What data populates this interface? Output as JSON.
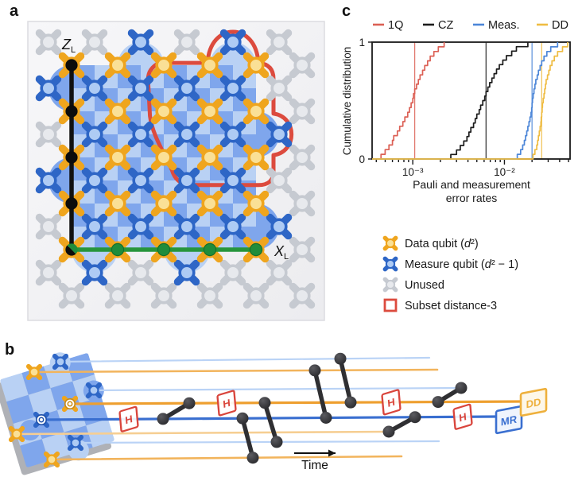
{
  "figure": {
    "panel_a_label": "a",
    "panel_b_label": "b",
    "panel_c_label": "c"
  },
  "colors": {
    "data_arm": "#EFA51E",
    "data_core": "#FAE096",
    "measure_arm": "#2E66C6",
    "measure_core": "#AECBF4",
    "unused_arm": "#C6CAD1",
    "unused_core": "#E7E9ED",
    "checker_light": "#B9D1F4",
    "checker_medium": "#7FA6EC",
    "subset_red": "#DC4B3E",
    "z_line_black": "#111111",
    "x_line_green": "#27953C",
    "x_dot_green": "#1F8C3B",
    "panel_bg": "#F4F4F6",
    "panel_border": "#DCDCE0",
    "wire_lightblue": "#BAD3F6",
    "wire_orange": "#F2B45C",
    "wire_orange_bold": "#EE9F2F",
    "wire_blue_bold": "#3A6FD0",
    "wire_orange_pale": "#F6CE92",
    "dumbbell": "#2F2F32",
    "h_gate_red": "#D9453C",
    "mr_blue": "#3A6FD0",
    "dd_yellow": "#EEB03C"
  },
  "panel_a": {
    "z_logical": {
      "symbol": "Z",
      "subscript": "L"
    },
    "x_logical": {
      "symbol": "X",
      "subscript": "L"
    },
    "code_distance": 5,
    "data_qubit_count": 25,
    "measure_qubit_count": 24,
    "boundary_measure_sites": [
      [
        1.5,
        -0.5
      ],
      [
        3.5,
        -0.5
      ],
      [
        -0.5,
        0.5
      ],
      [
        -0.5,
        2.5
      ],
      [
        4.5,
        1.5
      ],
      [
        4.5,
        3.5
      ],
      [
        0.5,
        4.5
      ],
      [
        2.5,
        4.5
      ]
    ],
    "unused_sites": [
      [
        -0.5,
        -0.5
      ],
      [
        0.5,
        -0.5
      ],
      [
        2.5,
        -0.5
      ],
      [
        4.5,
        -0.5
      ],
      [
        -0.5,
        1.5
      ],
      [
        -0.5,
        3.5
      ],
      [
        4.5,
        0.5
      ],
      [
        4.5,
        2.5
      ],
      [
        -0.5,
        4.5
      ],
      [
        1.5,
        4.5
      ],
      [
        3.5,
        4.5
      ],
      [
        4.5,
        4.5
      ],
      [
        5,
        0
      ],
      [
        5,
        1
      ],
      [
        5,
        2
      ],
      [
        5,
        3
      ],
      [
        5,
        4
      ],
      [
        5,
        5
      ],
      [
        0,
        5
      ],
      [
        1,
        5
      ],
      [
        2,
        5
      ],
      [
        3,
        5
      ],
      [
        4,
        5
      ]
    ]
  },
  "chart_data": {
    "type": "line",
    "subtype": "empirical_cdf_steps",
    "title": "",
    "xlabel_lines": [
      "Pauli and measurement",
      "error rates"
    ],
    "ylabel": "Cumulative distribution",
    "x_scale": "log",
    "xlim": [
      0.00036,
      0.052
    ],
    "ylim": [
      0,
      1
    ],
    "x_ticks": [
      {
        "value": 0.001,
        "label": "10⁻³"
      },
      {
        "value": 0.01,
        "label": "10⁻²"
      }
    ],
    "y_ticks": [
      {
        "value": 0,
        "label": "0"
      },
      {
        "value": 1,
        "label": "1"
      }
    ],
    "legend_position": "top",
    "grid": false,
    "series": [
      {
        "name": "1Q",
        "color": "#DC6055",
        "median": 0.00105,
        "samples": [
          0.00045,
          0.0005,
          0.00055,
          0.0006,
          0.00062,
          0.00068,
          0.00072,
          0.00078,
          0.00082,
          0.00088,
          0.00092,
          0.00096,
          0.001,
          0.00102,
          0.00105,
          0.0011,
          0.00115,
          0.0012,
          0.00128,
          0.00135,
          0.00145,
          0.00155,
          0.0017,
          0.0019,
          0.0022
        ]
      },
      {
        "name": "CZ",
        "color": "#1B1B1B",
        "median": 0.0063,
        "samples": [
          0.0026,
          0.003,
          0.0033,
          0.0036,
          0.0039,
          0.0041,
          0.0043,
          0.0046,
          0.0048,
          0.005,
          0.0053,
          0.0055,
          0.0058,
          0.0061,
          0.0063,
          0.0066,
          0.0069,
          0.0073,
          0.0077,
          0.0082,
          0.0088,
          0.0096,
          0.0105,
          0.012,
          0.0135,
          0.018
        ]
      },
      {
        "name": "Meas.",
        "color": "#4C86D8",
        "median": 0.02,
        "samples": [
          0.0138,
          0.015,
          0.0158,
          0.0165,
          0.017,
          0.0175,
          0.018,
          0.0185,
          0.019,
          0.0195,
          0.0198,
          0.02,
          0.0202,
          0.0206,
          0.021,
          0.0215,
          0.022,
          0.0228,
          0.0235,
          0.0245,
          0.0255,
          0.027,
          0.029,
          0.032,
          0.038
        ]
      },
      {
        "name": "DD",
        "color": "#EFBC42",
        "median": 0.0255,
        "samples": [
          0.0205,
          0.0215,
          0.0225,
          0.023,
          0.0235,
          0.024,
          0.0245,
          0.025,
          0.0252,
          0.0255,
          0.0258,
          0.026,
          0.0265,
          0.027,
          0.0275,
          0.028,
          0.0285,
          0.0295,
          0.0305,
          0.0315,
          0.033,
          0.035,
          0.038,
          0.043,
          0.049
        ]
      }
    ]
  },
  "qubit_legend": {
    "items": [
      {
        "icon": "data-qubit-icon",
        "label": "Data qubit (d²)"
      },
      {
        "icon": "measure-qubit-icon",
        "label": "Measure qubit (d² − 1)"
      },
      {
        "icon": "unused-qubit-icon",
        "label": "Unused"
      },
      {
        "icon": "subset-outline-icon",
        "label": "Subset distance-3"
      }
    ]
  },
  "panel_b": {
    "h_gate_label": "H",
    "mr_label": "MR",
    "dd_label": "DD",
    "time_label": "Time",
    "h_gate_count": 4,
    "cz_gate_count": 7,
    "wires": [
      {
        "role": "measure",
        "color_key": "wire_lightblue"
      },
      {
        "role": "data",
        "color_key": "wire_orange"
      },
      {
        "role": "measure",
        "color_key": "wire_lightblue"
      },
      {
        "role": "data",
        "color_key": "wire_orange_bold"
      },
      {
        "role": "measure",
        "color_key": "wire_blue_bold"
      },
      {
        "role": "data",
        "color_key": "wire_orange_pale"
      },
      {
        "role": "measure",
        "color_key": "wire_lightblue"
      },
      {
        "role": "data",
        "color_key": "wire_orange"
      }
    ]
  }
}
